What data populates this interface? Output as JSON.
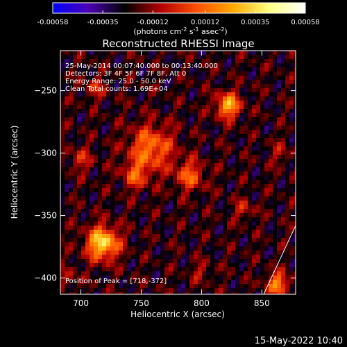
{
  "colorbar": {
    "ticks": [
      "-0.00058",
      "-0.00035",
      "-0.00012",
      "0.00012",
      "0.00035",
      "0.00058"
    ],
    "tick_values": [
      -0.00058,
      -0.00035,
      -0.00012,
      0.00012,
      0.00035,
      0.00058
    ],
    "range": [
      -0.00058,
      0.00058
    ],
    "label_parts": [
      "(photons cm",
      "-2",
      " s",
      "-1",
      " asec",
      "-2",
      ")"
    ],
    "colors": [
      "#0000ff",
      "#4b00b4",
      "#000000",
      "#b40000",
      "#ff5000",
      "#ffaa00",
      "#ffff80",
      "#ffffff"
    ]
  },
  "chart_data": {
    "type": "heatmap",
    "title": "Reconstructed RHESSI Image",
    "xlabel": "Heliocentric X (arcsec)",
    "ylabel": "Heliocentric Y (arcsec)",
    "xlim": [
      683,
      878
    ],
    "ylim": [
      -413,
      -218
    ],
    "xticks": [
      700,
      750,
      800,
      850
    ],
    "yticks": [
      -250,
      -300,
      -350,
      -400
    ],
    "sources": [
      {
        "x": 718,
        "y": -372,
        "r": 13,
        "amp": 0.00058
      },
      {
        "x": 822,
        "y": -262,
        "r": 10,
        "amp": 0.00048
      },
      {
        "x": 758,
        "y": -296,
        "r": 18,
        "amp": 0.00036
      },
      {
        "x": 790,
        "y": -318,
        "r": 12,
        "amp": 0.0003
      },
      {
        "x": 745,
        "y": -318,
        "r": 11,
        "amp": 0.00026
      },
      {
        "x": 700,
        "y": -305,
        "r": 10,
        "amp": 0.00018
      },
      {
        "x": 712,
        "y": -248,
        "r": 9,
        "amp": 0.00018
      },
      {
        "x": 863,
        "y": -405,
        "r": 9,
        "amp": 0.0004
      },
      {
        "x": 835,
        "y": -345,
        "r": 8,
        "amp": 0.00018
      },
      {
        "x": 800,
        "y": -395,
        "r": 8,
        "amp": 0.00014
      },
      {
        "x": 865,
        "y": -300,
        "r": 9,
        "amp": 0.00012
      },
      {
        "x": 690,
        "y": -400,
        "r": 9,
        "amp": 0.00012
      }
    ],
    "peak": [
      718,
      -372
    ],
    "annotations": [
      "25-May-2014 00:07:40.000 to 00:13:40.000",
      "Detectors: 3F 4F 5F 6F 7F 8F, Att 0",
      "Energy Range: 25.0 - 50.0 keV",
      "Clean     Total counts: 1.69E+04"
    ],
    "peak_label": "Position of Peak = [718,-372]"
  },
  "timestamp": "15-May-2022 10:40"
}
